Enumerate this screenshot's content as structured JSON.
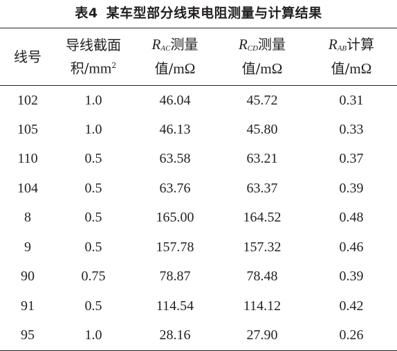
{
  "caption": {
    "number": "表4",
    "title": "某车型部分线束电阻测量与计算结果"
  },
  "header": {
    "col1": "线号",
    "col2_line1": "导线截面",
    "col2_line2_prefix": "积/",
    "col2_line2_unit": "mm",
    "col2_line2_sup": "2",
    "col3_symbol": "R",
    "col3_sub": "AC",
    "col3_suffix": "测量",
    "col4_symbol": "R",
    "col4_sub": "CD",
    "col4_suffix": "测量",
    "col5_symbol": "R",
    "col5_sub": "AB",
    "col5_suffix": "计算",
    "value_prefix": "值/",
    "value_unit": "mΩ"
  },
  "rows": [
    [
      "102",
      "1.0",
      "46.04",
      "45.72",
      "0.31"
    ],
    [
      "105",
      "1.0",
      "46.13",
      "45.80",
      "0.33"
    ],
    [
      "110",
      "0.5",
      "63.58",
      "63.21",
      "0.37"
    ],
    [
      "104",
      "0.5",
      "63.76",
      "63.37",
      "0.39"
    ],
    [
      "8",
      "0.5",
      "165.00",
      "164.52",
      "0.48"
    ],
    [
      "9",
      "0.5",
      "157.78",
      "157.32",
      "0.46"
    ],
    [
      "90",
      "0.75",
      "78.87",
      "78.48",
      "0.39"
    ],
    [
      "91",
      "0.5",
      "114.54",
      "114.12",
      "0.42"
    ],
    [
      "95",
      "1.0",
      "28.16",
      "27.90",
      "0.26"
    ]
  ]
}
